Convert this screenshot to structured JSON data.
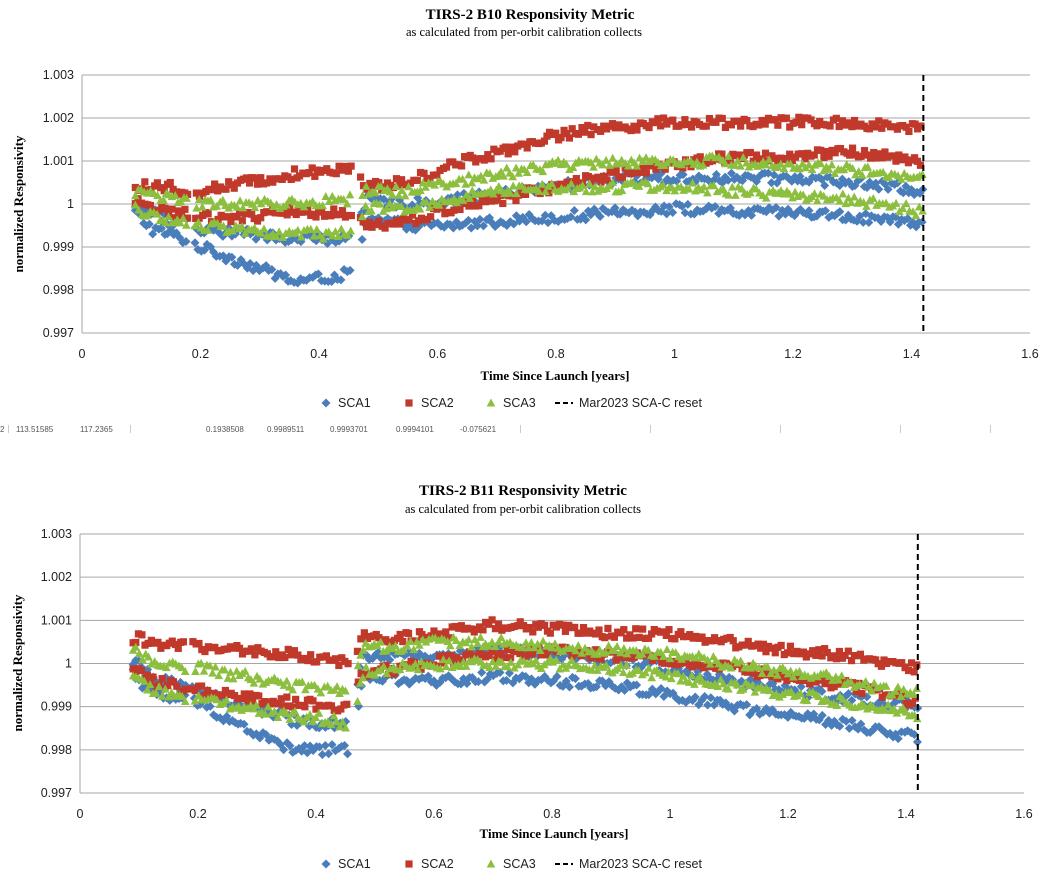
{
  "colors": {
    "SCA1": "#4a7ebb",
    "SCA2": "#c0392b",
    "SCA3": "#8dbf3f",
    "reset": "#000000",
    "grid": "#a6a6a6"
  },
  "stray_cells": [
    "113.51585",
    "117.2365",
    "0.1938508",
    "0.9989511",
    "0.9993701",
    "0.9994101",
    "-0.075621"
  ],
  "chart_data": [
    {
      "type": "scatter",
      "title": "TIRS-2 B10 Responsivity Metric",
      "subtitle": "as calculated from per-orbit calibration collects",
      "xlabel": "Time Since Launch [years]",
      "ylabel": "normalized Responsivity",
      "xlim": [
        0,
        1.6
      ],
      "ylim": [
        0.997,
        1.003
      ],
      "xticks": [
        "0",
        "0.2",
        "0.4",
        "0.6",
        "0.8",
        "1",
        "1.2",
        "1.4",
        "1.6"
      ],
      "yticks": [
        "0.997",
        "0.998",
        "0.999",
        "1",
        "1.001",
        "1.002",
        "1.003"
      ],
      "grid": "horizontal",
      "legend": "bottom",
      "legend_entries": [
        "SCA1",
        "SCA2",
        "SCA3",
        "Mar2023 SCA-C reset"
      ],
      "reset_x": 1.42,
      "series": [
        {
          "name": "SCA1",
          "marker": "diamond",
          "bands": [
            {
              "x": [
                0.09,
                0.12,
                0.15,
                0.17,
                0.2,
                0.28,
                0.36,
                0.42,
                0.46,
                0.48,
                0.55,
                0.62,
                0.7,
                0.8,
                0.9,
                1.0,
                1.1,
                1.2,
                1.3,
                1.36,
                1.42
              ],
              "y": [
                0.9998,
                0.9994,
                0.9993,
                0.9992,
                0.999,
                0.9986,
                0.9982,
                0.9983,
                0.9984,
                0.9997,
                0.9995,
                0.9995,
                0.9996,
                0.9997,
                0.9998,
                0.9999,
                0.9998,
                0.9998,
                0.9997,
                0.9996,
                0.9995
              ]
            },
            {
              "x": [
                0.09,
                0.12,
                0.15,
                0.17,
                0.2,
                0.28,
                0.36,
                0.42,
                0.46,
                0.48,
                0.55,
                0.62,
                0.7,
                0.8,
                0.9,
                1.0,
                1.1,
                1.2,
                1.3,
                1.36,
                1.42
              ],
              "y": [
                1.0,
                0.9998,
                0.9996,
                0.9996,
                0.9994,
                0.9993,
                0.9992,
                0.9992,
                0.9992,
                1.0001,
                1.0,
                1.0001,
                1.0002,
                1.0004,
                1.0006,
                1.0006,
                1.0006,
                1.0006,
                1.0005,
                1.0004,
                1.0003
              ]
            }
          ]
        },
        {
          "name": "SCA2",
          "marker": "square",
          "bands": [
            {
              "x": [
                0.09,
                0.12,
                0.15,
                0.17,
                0.2,
                0.28,
                0.36,
                0.42,
                0.46,
                0.48,
                0.55,
                0.62,
                0.7,
                0.8,
                0.9,
                1.0,
                1.1,
                1.2,
                1.3,
                1.36,
                1.42
              ],
              "y": [
                1.0004,
                1.0004,
                1.0004,
                1.0003,
                1.0003,
                1.0005,
                1.0007,
                1.0008,
                1.0009,
                1.0004,
                1.0005,
                1.0009,
                1.0012,
                1.0016,
                1.0018,
                1.0019,
                1.0019,
                1.0019,
                1.0019,
                1.0018,
                1.0018
              ]
            },
            {
              "x": [
                0.09,
                0.12,
                0.15,
                0.17,
                0.2,
                0.28,
                0.36,
                0.42,
                0.46,
                0.48,
                0.55,
                0.62,
                0.7,
                0.8,
                0.9,
                1.0,
                1.1,
                1.2,
                1.3,
                1.36,
                1.42
              ],
              "y": [
                1.0001,
                0.9999,
                0.9998,
                0.9998,
                0.9997,
                0.9997,
                0.9998,
                0.9998,
                0.9998,
                0.9995,
                0.9996,
                0.9999,
                1.0001,
                1.0004,
                1.0007,
                1.0009,
                1.0011,
                1.0011,
                1.0012,
                1.0011,
                1.001
              ]
            }
          ]
        },
        {
          "name": "SCA3",
          "marker": "triangle",
          "bands": [
            {
              "x": [
                0.09,
                0.12,
                0.15,
                0.17,
                0.2,
                0.28,
                0.36,
                0.42,
                0.46,
                0.48,
                0.55,
                0.62,
                0.7,
                0.8,
                0.9,
                1.0,
                1.1,
                1.2,
                1.3,
                1.36,
                1.42
              ],
              "y": [
                1.0003,
                1.0002,
                1.0002,
                1.0001,
                1.0,
                1.0,
                1.0,
                1.0001,
                1.0001,
                1.0003,
                1.0003,
                1.0005,
                1.0007,
                1.0009,
                1.001,
                1.001,
                1.001,
                1.0009,
                1.0008,
                1.0007,
                1.0006
              ]
            },
            {
              "x": [
                0.09,
                0.12,
                0.15,
                0.17,
                0.2,
                0.28,
                0.36,
                0.42,
                0.46,
                0.48,
                0.55,
                0.62,
                0.7,
                0.8,
                0.9,
                1.0,
                1.1,
                1.2,
                1.3,
                1.36,
                1.42
              ],
              "y": [
                0.9999,
                0.9997,
                0.9996,
                0.9996,
                0.9995,
                0.9994,
                0.9993,
                0.9993,
                0.9993,
                0.9999,
                0.9999,
                1.0001,
                1.0003,
                1.0004,
                1.0004,
                1.0004,
                1.0003,
                1.0002,
                1.0001,
                1.0,
                0.9998
              ]
            }
          ]
        }
      ]
    },
    {
      "type": "scatter",
      "title": "TIRS-2 B11 Responsivity Metric",
      "subtitle": "as calculated from per-orbit calibration collects",
      "xlabel": "Time Since Launch [years]",
      "ylabel": "normalized Responsivity",
      "xlim": [
        0,
        1.6
      ],
      "ylim": [
        0.997,
        1.003
      ],
      "xticks": [
        "0",
        "0.2",
        "0.4",
        "0.6",
        "0.8",
        "1",
        "1.2",
        "1.4",
        "1.6"
      ],
      "yticks": [
        "0.997",
        "0.998",
        "0.999",
        "1",
        "1.001",
        "1.002",
        "1.003"
      ],
      "grid": "horizontal",
      "legend": "bottom",
      "legend_entries": [
        "SCA1",
        "SCA2",
        "SCA3",
        "Mar2023 SCA-C reset"
      ],
      "reset_x": 1.42,
      "series": [
        {
          "name": "SCA1",
          "marker": "diamond",
          "bands": [
            {
              "x": [
                0.09,
                0.12,
                0.15,
                0.17,
                0.2,
                0.28,
                0.36,
                0.42,
                0.46,
                0.48,
                0.55,
                0.62,
                0.7,
                0.8,
                0.9,
                1.0,
                1.1,
                1.2,
                1.3,
                1.36,
                1.42
              ],
              "y": [
                0.9998,
                0.9993,
                0.9992,
                0.9992,
                0.9991,
                0.9985,
                0.998,
                0.998,
                0.998,
                0.9997,
                0.9996,
                0.9996,
                0.9997,
                0.9996,
                0.9995,
                0.9993,
                0.999,
                0.9988,
                0.9986,
                0.9984,
                0.9983
              ]
            },
            {
              "x": [
                0.09,
                0.12,
                0.15,
                0.17,
                0.2,
                0.28,
                0.36,
                0.42,
                0.46,
                0.48,
                0.55,
                0.62,
                0.7,
                0.8,
                0.9,
                1.0,
                1.1,
                1.2,
                1.3,
                1.36,
                1.42
              ],
              "y": [
                1.0001,
                0.9997,
                0.9996,
                0.9995,
                0.9994,
                0.999,
                0.9987,
                0.9986,
                0.9986,
                1.0002,
                1.0002,
                1.0002,
                1.0003,
                1.0002,
                1.0001,
                0.9999,
                0.9996,
                0.9994,
                0.9992,
                0.9991,
                0.999
              ]
            }
          ]
        },
        {
          "name": "SCA2",
          "marker": "square",
          "bands": [
            {
              "x": [
                0.09,
                0.12,
                0.15,
                0.17,
                0.2,
                0.28,
                0.36,
                0.42,
                0.46,
                0.48,
                0.55,
                0.62,
                0.7,
                0.8,
                0.9,
                1.0,
                1.1,
                1.2,
                1.3,
                1.36,
                1.42
              ],
              "y": [
                1.0006,
                1.0005,
                1.0004,
                1.0004,
                1.0004,
                1.0003,
                1.0002,
                1.0001,
                1.0,
                1.0006,
                1.0006,
                1.0007,
                1.0009,
                1.0008,
                1.0007,
                1.0007,
                1.0005,
                1.0003,
                1.0002,
                1.0,
                0.9999
              ]
            },
            {
              "x": [
                0.09,
                0.12,
                0.15,
                0.17,
                0.2,
                0.28,
                0.36,
                0.42,
                0.46,
                0.48,
                0.55,
                0.62,
                0.7,
                0.8,
                0.9,
                1.0,
                1.1,
                1.2,
                1.3,
                1.36,
                1.42
              ],
              "y": [
                0.9999,
                0.9996,
                0.9995,
                0.9994,
                0.9994,
                0.9992,
                0.9991,
                0.999,
                0.999,
                0.9998,
                0.9999,
                1.0001,
                1.0002,
                1.0003,
                1.0002,
                1.0001,
                0.9999,
                0.9997,
                0.9995,
                0.9993,
                0.9991
              ]
            }
          ]
        },
        {
          "name": "SCA3",
          "marker": "triangle",
          "bands": [
            {
              "x": [
                0.09,
                0.12,
                0.15,
                0.17,
                0.2,
                0.28,
                0.36,
                0.42,
                0.46,
                0.48,
                0.55,
                0.62,
                0.7,
                0.8,
                0.9,
                1.0,
                1.1,
                1.2,
                1.3,
                1.36,
                1.42
              ],
              "y": [
                1.0003,
                1.0001,
                1.0,
                0.9999,
                0.9999,
                0.9997,
                0.9995,
                0.9994,
                0.9994,
                1.0004,
                1.0004,
                1.0005,
                1.0005,
                1.0004,
                1.0003,
                1.0002,
                1.0,
                0.9998,
                0.9996,
                0.9994,
                0.9993
              ]
            },
            {
              "x": [
                0.09,
                0.12,
                0.15,
                0.17,
                0.2,
                0.28,
                0.36,
                0.42,
                0.46,
                0.48,
                0.55,
                0.62,
                0.7,
                0.8,
                0.9,
                1.0,
                1.1,
                1.2,
                1.3,
                1.36,
                1.42
              ],
              "y": [
                0.9998,
                0.9994,
                0.9993,
                0.9992,
                0.9992,
                0.999,
                0.9988,
                0.9987,
                0.9986,
                0.9998,
                0.9999,
                1.0,
                1.0,
                1.0,
                0.9999,
                0.9997,
                0.9995,
                0.9993,
                0.9991,
                0.999,
                0.9988
              ]
            }
          ]
        }
      ]
    }
  ]
}
